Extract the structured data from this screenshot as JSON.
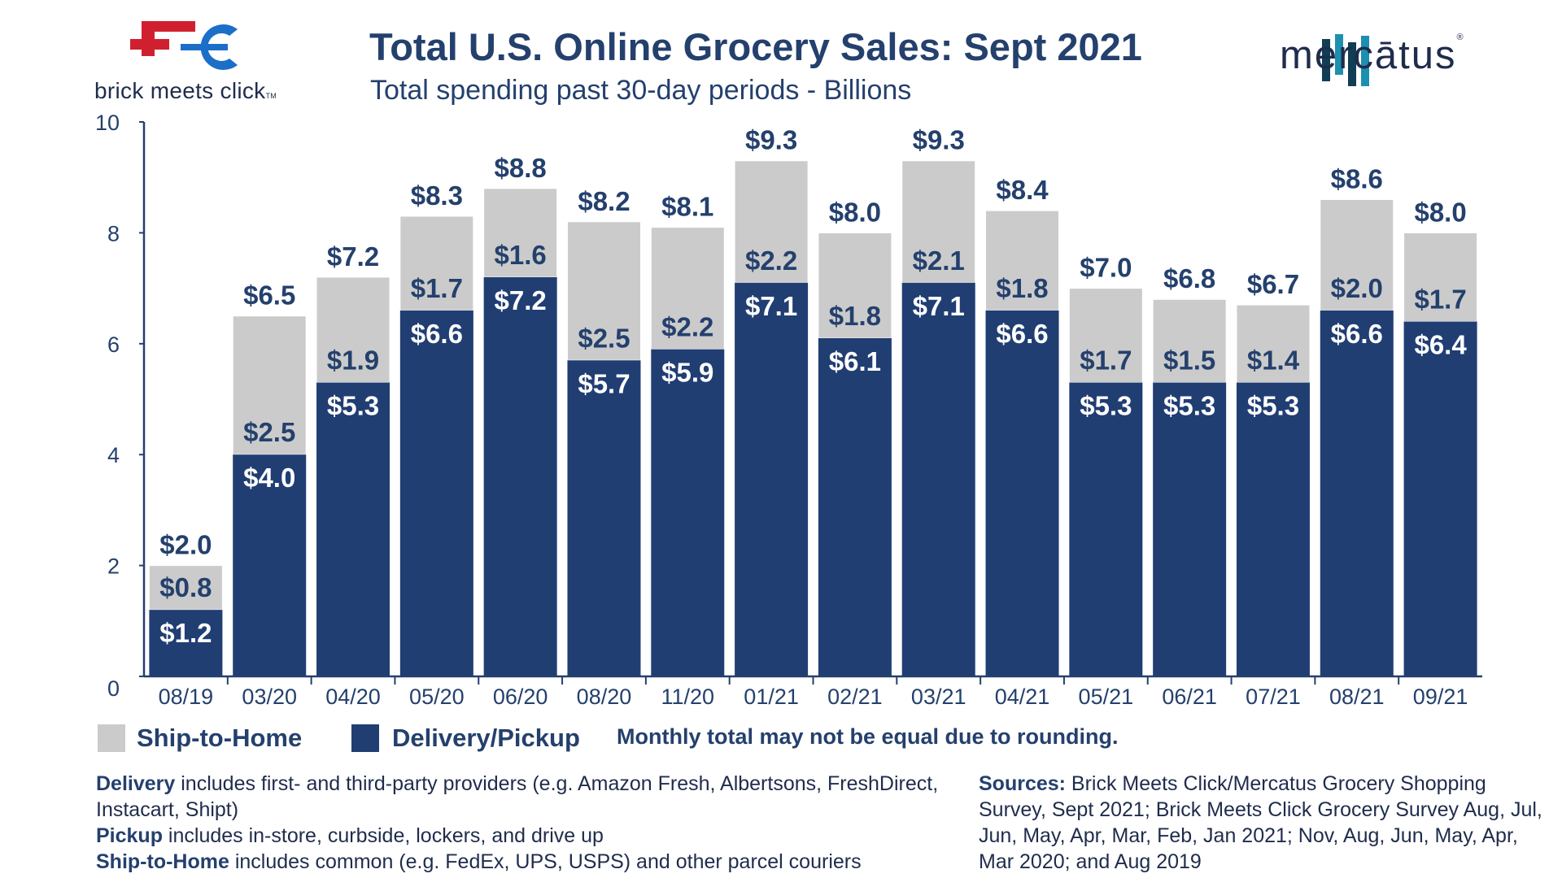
{
  "header": {
    "title": "Total U.S. Online Grocery Sales: Sept 2021",
    "subtitle": "Total spending past 30-day periods - Billions"
  },
  "logos": {
    "bmc_text": "brick meets click",
    "bmc_tm": "TM",
    "mercatus_text": "mercātus",
    "mercatus_reg": "®"
  },
  "colors": {
    "ship_to_home": "#cbcbcb",
    "delivery_pickup": "#213e73",
    "label_dark": "#24406d",
    "label_light": "#ffffff"
  },
  "chart_data": {
    "type": "bar",
    "stacked": true,
    "title": "Total U.S. Online Grocery Sales: Sept 2021",
    "subtitle": "Total spending past 30-day periods - Billions",
    "xlabel": "",
    "ylabel": "",
    "ylim": [
      0,
      10
    ],
    "yticks": [
      0,
      2,
      4,
      6,
      8,
      10
    ],
    "categories": [
      "08/19",
      "03/20",
      "04/20",
      "05/20",
      "06/20",
      "08/20",
      "11/20",
      "01/21",
      "02/21",
      "03/21",
      "04/21",
      "05/21",
      "06/21",
      "07/21",
      "08/21",
      "09/21"
    ],
    "series": [
      {
        "name": "Delivery/Pickup",
        "values": [
          1.2,
          4.0,
          5.3,
          6.6,
          7.2,
          5.7,
          5.9,
          7.1,
          6.1,
          7.1,
          6.6,
          5.3,
          5.3,
          5.3,
          6.6,
          6.4
        ],
        "labels": [
          "$1.2",
          "$4.0",
          "$5.3",
          "$6.6",
          "$7.2",
          "$5.7",
          "$5.9",
          "$7.1",
          "$6.1",
          "$7.1",
          "$6.6",
          "$5.3",
          "$5.3",
          "$5.3",
          "$6.6",
          "$6.4"
        ]
      },
      {
        "name": "Ship-to-Home",
        "values": [
          0.8,
          2.5,
          1.9,
          1.7,
          1.6,
          2.5,
          2.2,
          2.2,
          1.8,
          2.1,
          1.8,
          1.7,
          1.5,
          1.4,
          2.0,
          1.7
        ],
        "labels": [
          "$0.8",
          "$2.5",
          "$1.9",
          "$1.7",
          "$1.6",
          "$2.5",
          "$2.2",
          "$2.2",
          "$1.8",
          "$2.1",
          "$1.8",
          "$1.7",
          "$1.5",
          "$1.4",
          "$2.0",
          "$1.7"
        ]
      }
    ],
    "totals": [
      2.0,
      6.5,
      7.2,
      8.3,
      8.8,
      8.2,
      8.1,
      9.3,
      8.0,
      9.3,
      8.4,
      7.0,
      6.8,
      6.7,
      8.6,
      8.0
    ],
    "total_labels": [
      "$2.0",
      "$6.5",
      "$7.2",
      "$8.3",
      "$8.8",
      "$8.2",
      "$8.1",
      "$9.3",
      "$8.0",
      "$9.3",
      "$8.4",
      "$7.0",
      "$6.8",
      "$6.7",
      "$8.6",
      "$8.0"
    ],
    "legend": [
      "Ship-to-Home",
      "Delivery/Pickup"
    ],
    "legend_position": "bottom-left",
    "grid": false
  },
  "legend": {
    "ship_label": "Ship-to-Home",
    "delivery_label": "Delivery/Pickup",
    "note": "Monthly total may not be equal due to rounding."
  },
  "footnotes": {
    "delivery_term": "Delivery",
    "delivery_text": " includes first- and third-party providers (e.g. Amazon Fresh, Albertsons, FreshDirect, Instacart, Shipt)",
    "pickup_term": "Pickup",
    "pickup_text": " includes in-store, curbside, lockers, and drive up",
    "ship_term": "Ship-to-Home",
    "ship_text": " includes common (e.g. FedEx, UPS, USPS) and other parcel couriers",
    "sources_term": "Sources:",
    "sources_text": " Brick Meets Click/Mercatus Grocery Shopping Survey, Sept 2021; Brick Meets Click Grocery Survey Aug, Jul, Jun, May, Apr, Mar, Feb, Jan 2021; Nov, Aug, Jun, May, Apr, Mar 2020; and Aug 2019"
  }
}
